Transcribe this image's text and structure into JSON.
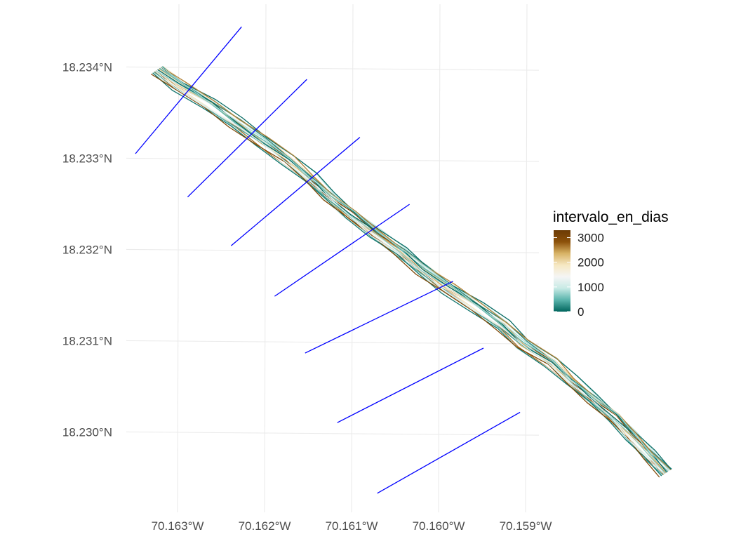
{
  "chart_data": {
    "type": "map",
    "x_axis": {
      "ticks": [
        {
          "value": -70.163,
          "label": "70.163°W"
        },
        {
          "value": -70.162,
          "label": "70.162°W"
        },
        {
          "value": -70.161,
          "label": "70.161°W"
        },
        {
          "value": -70.16,
          "label": "70.160°W"
        },
        {
          "value": -70.159,
          "label": "70.159°W"
        }
      ],
      "range": [
        -70.1636,
        -70.1589
      ]
    },
    "y_axis": {
      "ticks": [
        {
          "value": 18.234,
          "label": "18.234°N"
        },
        {
          "value": 18.233,
          "label": "18.233°N"
        },
        {
          "value": 18.232,
          "label": "18.232°N"
        },
        {
          "value": 18.231,
          "label": "18.231°N"
        },
        {
          "value": 18.23,
          "label": "18.230°N"
        }
      ],
      "range": [
        18.2293,
        18.2348
      ]
    },
    "legend": {
      "title": "intervalo_en_dias",
      "placement": "right",
      "breaks": [
        {
          "value": 3000,
          "label": "3000"
        },
        {
          "value": 2000,
          "label": "2000"
        },
        {
          "value": 1000,
          "label": "1000"
        },
        {
          "value": 0,
          "label": "0"
        }
      ],
      "limits": [
        0,
        3300
      ],
      "colors": [
        "#01665e",
        "#5ab4ac",
        "#c7eae5",
        "#f5f5f5",
        "#f6e8c3",
        "#d8b365",
        "#8c510a",
        "#6b3a05"
      ]
    },
    "centerline": [
      [
        -70.16325,
        18.23397
      ],
      [
        -70.163,
        18.2338
      ],
      [
        -70.16265,
        18.2336
      ],
      [
        -70.16235,
        18.2334
      ],
      [
        -70.16205,
        18.2332
      ],
      [
        -70.16175,
        18.233
      ],
      [
        -70.1615,
        18.2328
      ],
      [
        -70.16128,
        18.2326
      ],
      [
        -70.16102,
        18.2324
      ],
      [
        -70.16075,
        18.2322
      ],
      [
        -70.16045,
        18.232
      ],
      [
        -70.1602,
        18.2318
      ],
      [
        -70.1599,
        18.2316
      ],
      [
        -70.15958,
        18.2314
      ],
      [
        -70.15928,
        18.2312
      ],
      [
        -70.15905,
        18.231
      ],
      [
        -70.15872,
        18.2308
      ],
      [
        -70.1585,
        18.2306
      ],
      [
        -70.15825,
        18.2304
      ],
      [
        -70.158,
        18.2302
      ],
      [
        -70.1578,
        18.23
      ],
      [
        -70.1576,
        18.2298
      ],
      [
        -70.1574,
        18.2296
      ]
    ],
    "shorelines": [
      {
        "intervalo_en_dias": 3250,
        "offset": 1.8e-05
      },
      {
        "intervalo_en_dias": 3100,
        "offset": -2.8e-05
      },
      {
        "intervalo_en_dias": 2950,
        "offset": 4e-05
      },
      {
        "intervalo_en_dias": 2700,
        "offset": -5e-05
      },
      {
        "intervalo_en_dias": 2500,
        "offset": 8e-06
      },
      {
        "intervalo_en_dias": 2300,
        "offset": -1.2e-05
      },
      {
        "intervalo_en_dias": 2100,
        "offset": 3e-05
      },
      {
        "intervalo_en_dias": 1900,
        "offset": -3.6e-05
      },
      {
        "intervalo_en_dias": 1700,
        "offset": 5.2e-05
      },
      {
        "intervalo_en_dias": 1500,
        "offset": -2e-05
      },
      {
        "intervalo_en_dias": 1300,
        "offset": 4e-06
      },
      {
        "intervalo_en_dias": 1100,
        "offset": -6e-05
      },
      {
        "intervalo_en_dias": 900,
        "offset": 6.4e-05
      },
      {
        "intervalo_en_dias": 700,
        "offset": -4e-06
      },
      {
        "intervalo_en_dias": 500,
        "offset": 2.4e-05
      },
      {
        "intervalo_en_dias": 350,
        "offset": -4.4e-05
      },
      {
        "intervalo_en_dias": 200,
        "offset": 4.4e-05
      },
      {
        "intervalo_en_dias": 100,
        "offset": -7e-05
      },
      {
        "intervalo_en_dias": 40,
        "offset": 7.4e-05
      },
      {
        "intervalo_en_dias": 10,
        "offset": 1.2e-05
      },
      {
        "intervalo_en_dias": 3000,
        "offset": -6.4e-05
      },
      {
        "intervalo_en_dias": 2600,
        "offset": 6e-05
      },
      {
        "intervalo_en_dias": 800,
        "offset": 3.4e-05
      },
      {
        "intervalo_en_dias": 1200,
        "offset": -3.2e-05
      }
    ],
    "transects": [
      {
        "start": [
          -70.1635,
          18.23305
        ],
        "end": [
          -70.16228,
          18.23445
        ]
      },
      {
        "start": [
          -70.1629,
          18.23258
        ],
        "end": [
          -70.16153,
          18.23388
        ]
      },
      {
        "start": [
          -70.1624,
          18.23205
        ],
        "end": [
          -70.16092,
          18.23325
        ]
      },
      {
        "start": [
          -70.1619,
          18.2315
        ],
        "end": [
          -70.16035,
          18.23252
        ]
      },
      {
        "start": [
          -70.16155,
          18.23088
        ],
        "end": [
          -70.15985,
          18.23168
        ]
      },
      {
        "start": [
          -70.16118,
          18.23012
        ],
        "end": [
          -70.1595,
          18.23095
        ]
      },
      {
        "start": [
          -70.16072,
          18.22935
        ],
        "end": [
          -70.15908,
          18.23025
        ]
      }
    ],
    "transect_color": "#0000ff"
  }
}
